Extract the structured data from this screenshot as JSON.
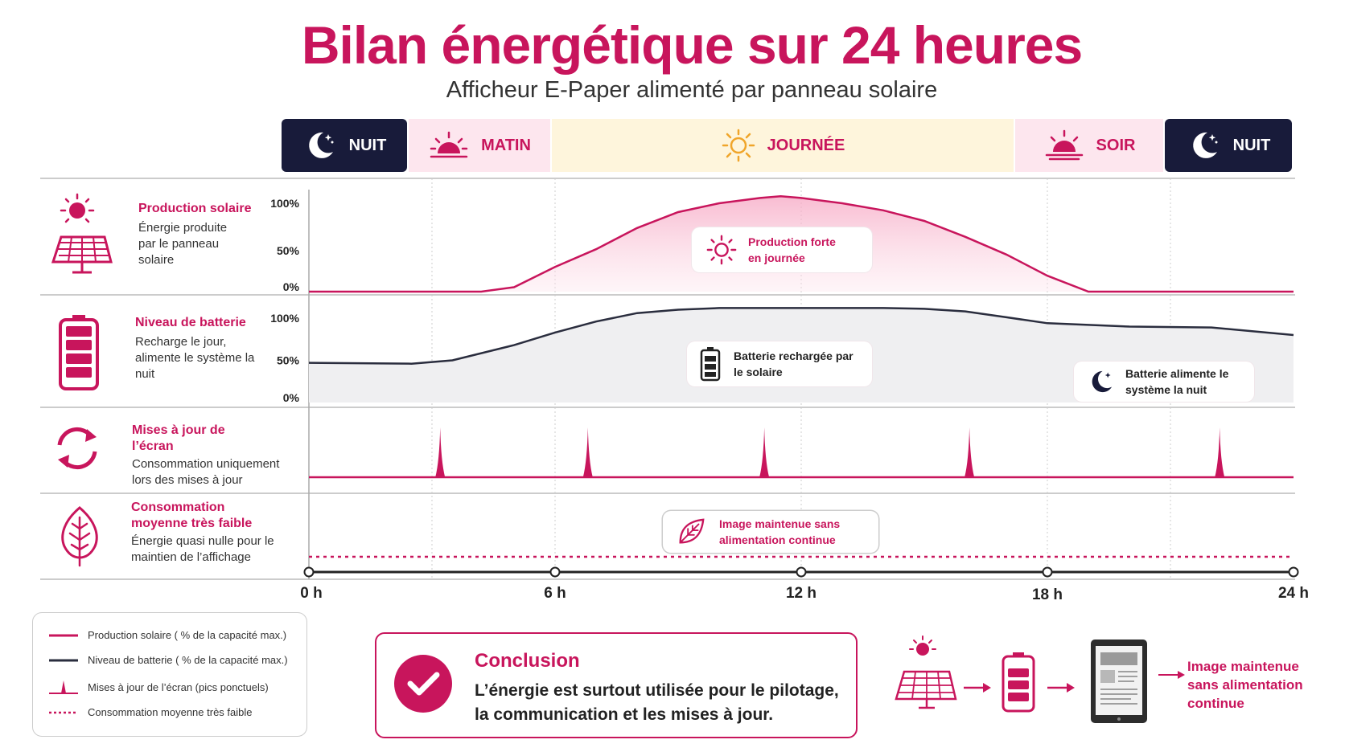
{
  "title": "Bilan énergétique sur 24 heures",
  "subtitle": "Afficheur E-Paper alimenté par panneau solaire",
  "phases": [
    {
      "label": "NUIT",
      "icon": "moon-icon"
    },
    {
      "label": "MATIN",
      "icon": "sunrise-icon"
    },
    {
      "label": "JOURNÉE",
      "icon": "sun-icon"
    },
    {
      "label": "SOIR",
      "icon": "sunset-icon"
    },
    {
      "label": "NUIT",
      "icon": "moon-icon"
    }
  ],
  "rows": {
    "solar": {
      "title": "Production solaire",
      "desc": "Énergie produite par le panneau solaire",
      "icon": "solar-panel-icon"
    },
    "battery": {
      "title": "Niveau de batterie",
      "desc": "Recharge le jour, alimente le système la nuit",
      "icon": "battery-icon"
    },
    "updates": {
      "title": "Mises à jour de l’écran",
      "desc": "Consommation uniquement lors des mises à jour",
      "icon": "refresh-icon"
    },
    "consumption": {
      "title": "Consommation moyenne très faible",
      "desc": "Énergie quasi nulle pour le maintien de l’affichage",
      "icon": "leaf-icon"
    }
  },
  "annotations": {
    "solar_peak": "Production forte en journée",
    "battery_charged": "Batterie rechargée par le solaire",
    "battery_night": "Batterie alimente le système la nuit",
    "image_kept": "Image maintenue sans alimentation continue"
  },
  "legend": [
    "Production solaire ( % de la capacité max.)",
    "Niveau de batterie ( % de la capacité max.)",
    "Mises à jour de l’écran (pics ponctuels)",
    "Consommation moyenne très faible"
  ],
  "conclusion": {
    "title": "Conclusion",
    "text": "L’énergie est surtout utilisée pour le pilotage, la communication et les mises à jour."
  },
  "flow": {
    "text": "Image maintenue sans alimentation continue"
  },
  "colors": {
    "accent": "#c8155c",
    "dark": "#181b3a",
    "battery_line": "#2a2d3e"
  },
  "chart_data": {
    "type": "line",
    "x_unit": "h",
    "xlim": [
      0,
      24
    ],
    "x_ticks": [
      0,
      6,
      12,
      18,
      24
    ],
    "x_tick_labels": [
      "0 h",
      "6 h",
      "12 h",
      "18 h",
      "24 h"
    ],
    "y_tick_labels": [
      "100%",
      "50%",
      "0%"
    ],
    "ylim": [
      0,
      100
    ],
    "series": [
      {
        "name": "Production solaire",
        "x": [
          0,
          4.2,
          5,
          6,
          7,
          8,
          9,
          10,
          11,
          11.5,
          12,
          13,
          14,
          15,
          16,
          17,
          18,
          19,
          24
        ],
        "y": [
          0,
          0,
          5,
          28,
          48,
          72,
          90,
          100,
          106,
          108,
          106,
          100,
          92,
          80,
          62,
          42,
          18,
          0,
          0
        ]
      },
      {
        "name": "Niveau de batterie",
        "x": [
          0,
          2.5,
          3.5,
          5,
          6,
          7,
          8,
          9,
          10,
          12,
          14,
          15,
          16,
          17,
          18,
          20,
          22,
          24
        ],
        "y": [
          47,
          46,
          50,
          68,
          83,
          96,
          106,
          110,
          112,
          112,
          112,
          111,
          108,
          101,
          94,
          90,
          89,
          80
        ]
      },
      {
        "name": "Mises à jour de l’écran",
        "peaks_x": [
          3.2,
          6.8,
          11.1,
          16.1,
          22.2
        ]
      },
      {
        "name": "Consommation moyenne très faible",
        "x": [
          0,
          24
        ],
        "y": [
          2,
          2
        ]
      }
    ]
  }
}
